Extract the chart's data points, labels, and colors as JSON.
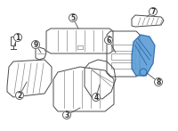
{
  "bg_color": "#ffffff",
  "highlight_color": "#5b9bd5",
  "line_color": "#4a4a4a",
  "light_line_color": "#888888",
  "label_color": "#333333",
  "fig_width": 2.0,
  "fig_height": 1.47,
  "dpi": 100
}
